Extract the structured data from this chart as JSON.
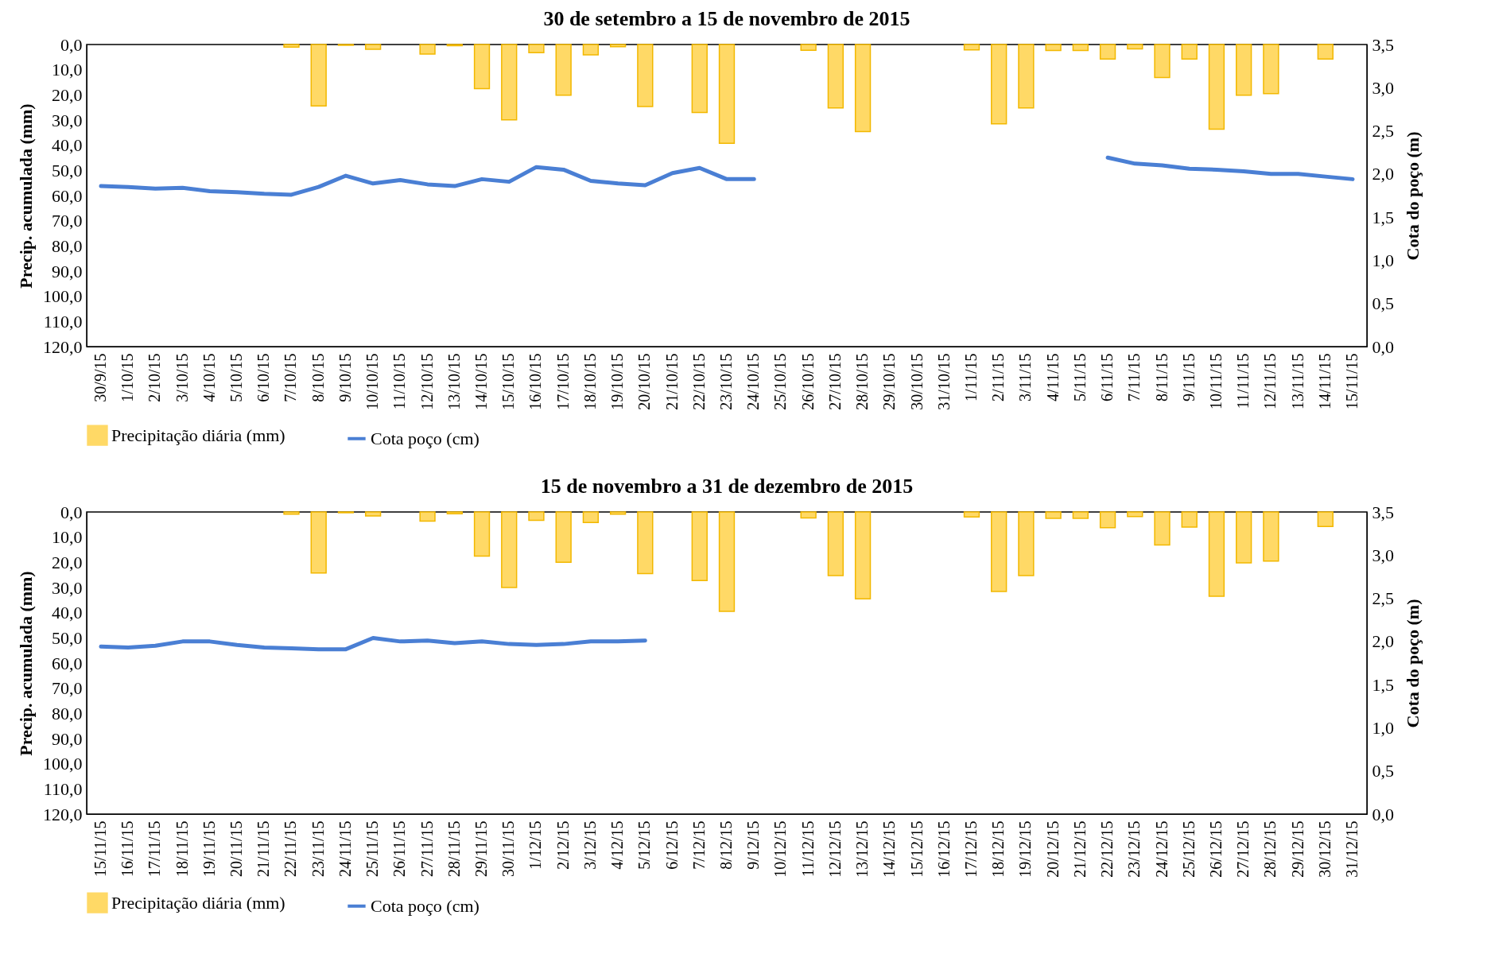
{
  "chart_data": [
    {
      "type": "bar",
      "title": "30 de setembro a 15 de novembro de 2015",
      "ylabel": "Precip. acumulada (mm)",
      "y2label": "Cota do poço (m)",
      "categories": [
        "30/9/15",
        "1/10/15",
        "2/10/15",
        "3/10/15",
        "4/10/15",
        "5/10/15",
        "6/10/15",
        "7/10/15",
        "8/10/15",
        "9/10/15",
        "10/10/15",
        "11/10/15",
        "12/10/15",
        "13/10/15",
        "14/10/15",
        "15/10/15",
        "16/10/15",
        "17/10/15",
        "18/10/15",
        "19/10/15",
        "20/10/15",
        "21/10/15",
        "22/10/15",
        "23/10/15",
        "24/10/15",
        "25/10/15",
        "26/10/15",
        "27/10/15",
        "28/10/15",
        "29/10/15",
        "30/10/15",
        "31/10/15",
        "1/11/15",
        "2/11/15",
        "3/11/15",
        "4/11/15",
        "5/11/15",
        "6/11/15",
        "7/11/15",
        "8/11/15",
        "9/11/15",
        "10/11/15",
        "11/11/15",
        "12/11/15",
        "13/11/15",
        "14/11/15",
        "15/11/15"
      ],
      "series": [
        {
          "name": "Precipitação diária (mm)",
          "color": "#ffd966",
          "values": [
            null,
            null,
            null,
            null,
            null,
            null,
            null,
            1,
            24.4,
            0.3,
            1.9,
            null,
            3.8,
            0.5,
            17.5,
            29.9,
            3.2,
            20.1,
            4.1,
            0.9,
            24.6,
            null,
            27.0,
            39.2,
            null,
            null,
            2.3,
            25.2,
            34.6,
            null,
            null,
            null,
            2.1,
            31.5,
            25.2,
            2.4,
            2.4,
            5.8,
            1.7,
            13.1,
            5.8,
            33.6,
            20.1,
            19.5,
            null,
            5.8,
            null
          ]
        },
        {
          "name": "Cota poço (cm)",
          "type": "line",
          "axis": "y2",
          "color": "#4a7fd4",
          "values": [
            1.86,
            1.85,
            1.83,
            1.84,
            1.8,
            1.79,
            1.77,
            1.76,
            1.85,
            1.98,
            1.89,
            1.93,
            1.88,
            1.86,
            1.94,
            1.91,
            2.08,
            2.05,
            1.92,
            1.89,
            1.87,
            2.01,
            2.07,
            1.94,
            1.94,
            null,
            null,
            null,
            null,
            null,
            null,
            null,
            null,
            null,
            null,
            null,
            null,
            2.19,
            2.12,
            2.1,
            2.06,
            2.05,
            2.03,
            2.0,
            2.0,
            1.97,
            1.94
          ]
        }
      ],
      "ylim": [
        120,
        0
      ],
      "yticks": [
        {
          "value": 0,
          "label": "0,0"
        },
        {
          "value": 10,
          "label": "10,0"
        },
        {
          "value": 20,
          "label": "20,0"
        },
        {
          "value": 30,
          "label": "30,0"
        },
        {
          "value": 40,
          "label": "40,0"
        },
        {
          "value": 50,
          "label": "50,0"
        },
        {
          "value": 60,
          "label": "60,0"
        },
        {
          "value": 70,
          "label": "70,0"
        },
        {
          "value": 80,
          "label": "80,0"
        },
        {
          "value": 90,
          "label": "90,0"
        },
        {
          "value": 100,
          "label": "100,0"
        },
        {
          "value": 110,
          "label": "110,0"
        },
        {
          "value": 120,
          "label": "120,0"
        }
      ],
      "y2lim": [
        0,
        3.5
      ],
      "y2ticks": [
        {
          "value": 0,
          "label": "0,0"
        },
        {
          "value": 0.5,
          "label": "0,5"
        },
        {
          "value": 1,
          "label": "1,0"
        },
        {
          "value": 1.5,
          "label": "1,5"
        },
        {
          "value": 2,
          "label": "2,0"
        },
        {
          "value": 2.5,
          "label": "2,5"
        },
        {
          "value": 3,
          "label": "3,0"
        },
        {
          "value": 3.5,
          "label": "3,5"
        }
      ],
      "grid": false,
      "legend": "bottom"
    },
    {
      "type": "bar",
      "title": "15 de novembro a 31 de dezembro de 2015",
      "ylabel": "Precip. acumulada (mm)",
      "y2label": "Cota do poço (m)",
      "categories": [
        "15/11/15",
        "16/11/15",
        "17/11/15",
        "18/11/15",
        "19/11/15",
        "20/11/15",
        "21/11/15",
        "22/11/15",
        "23/11/15",
        "24/11/15",
        "25/11/15",
        "26/11/15",
        "27/11/15",
        "28/11/15",
        "29/11/15",
        "30/11/15",
        "1/12/15",
        "2/12/15",
        "3/12/15",
        "4/12/15",
        "5/12/15",
        "6/12/15",
        "7/12/15",
        "8/12/15",
        "9/12/15",
        "10/12/15",
        "11/12/15",
        "12/12/15",
        "13/12/15",
        "14/12/15",
        "15/12/15",
        "16/12/15",
        "17/12/15",
        "18/12/15",
        "19/12/15",
        "20/12/15",
        "21/12/15",
        "22/12/15",
        "23/12/15",
        "24/12/15",
        "25/12/15",
        "26/12/15",
        "27/12/15",
        "28/12/15",
        "29/12/15",
        "30/12/15",
        "31/12/15"
      ],
      "series": [
        {
          "name": "Precipitação diária (mm)",
          "color": "#ffd966",
          "values": [
            null,
            null,
            null,
            null,
            null,
            null,
            null,
            0.9,
            24.2,
            0.3,
            1.6,
            null,
            3.6,
            0.7,
            17.5,
            30.0,
            3.3,
            20.0,
            4.2,
            0.9,
            24.5,
            null,
            27.2,
            39.5,
            null,
            null,
            2.4,
            25.3,
            34.5,
            null,
            null,
            null,
            2.0,
            31.6,
            25.3,
            2.5,
            2.5,
            6.2,
            1.8,
            13.1,
            6.0,
            33.5,
            20.2,
            19.5,
            null,
            5.8,
            null
          ]
        },
        {
          "name": "Cota poço (cm)",
          "type": "line",
          "axis": "y2",
          "color": "#4a7fd4",
          "values": [
            1.94,
            1.93,
            1.95,
            2.0,
            2.0,
            1.96,
            1.93,
            1.92,
            1.91,
            1.91,
            2.04,
            2.0,
            2.01,
            1.98,
            2.0,
            1.97,
            1.96,
            1.97,
            2.0,
            2.0,
            2.01,
            null,
            null,
            null,
            null,
            null,
            null,
            null,
            null,
            null,
            null,
            null,
            null,
            null,
            null,
            null,
            null,
            null,
            null,
            null,
            null,
            null,
            null,
            null,
            null,
            null,
            null
          ]
        }
      ],
      "ylim": [
        120,
        0
      ],
      "yticks": [
        {
          "value": 0,
          "label": "0,0"
        },
        {
          "value": 10,
          "label": "10,0"
        },
        {
          "value": 20,
          "label": "20,0"
        },
        {
          "value": 30,
          "label": "30,0"
        },
        {
          "value": 40,
          "label": "40,0"
        },
        {
          "value": 50,
          "label": "50,0"
        },
        {
          "value": 60,
          "label": "60,0"
        },
        {
          "value": 70,
          "label": "70,0"
        },
        {
          "value": 80,
          "label": "80,0"
        },
        {
          "value": 90,
          "label": "90,0"
        },
        {
          "value": 100,
          "label": "100,0"
        },
        {
          "value": 110,
          "label": "110,0"
        },
        {
          "value": 120,
          "label": "120,0"
        }
      ],
      "y2lim": [
        0,
        3.5
      ],
      "y2ticks": [
        {
          "value": 0,
          "label": "0,0"
        },
        {
          "value": 0.5,
          "label": "0,5"
        },
        {
          "value": 1,
          "label": "1,0"
        },
        {
          "value": 1.5,
          "label": "1,5"
        },
        {
          "value": 2,
          "label": "2,0"
        },
        {
          "value": 2.5,
          "label": "2,5"
        },
        {
          "value": 3,
          "label": "3,0"
        },
        {
          "value": 3.5,
          "label": "3,5"
        }
      ],
      "grid": false,
      "legend": "bottom"
    }
  ]
}
